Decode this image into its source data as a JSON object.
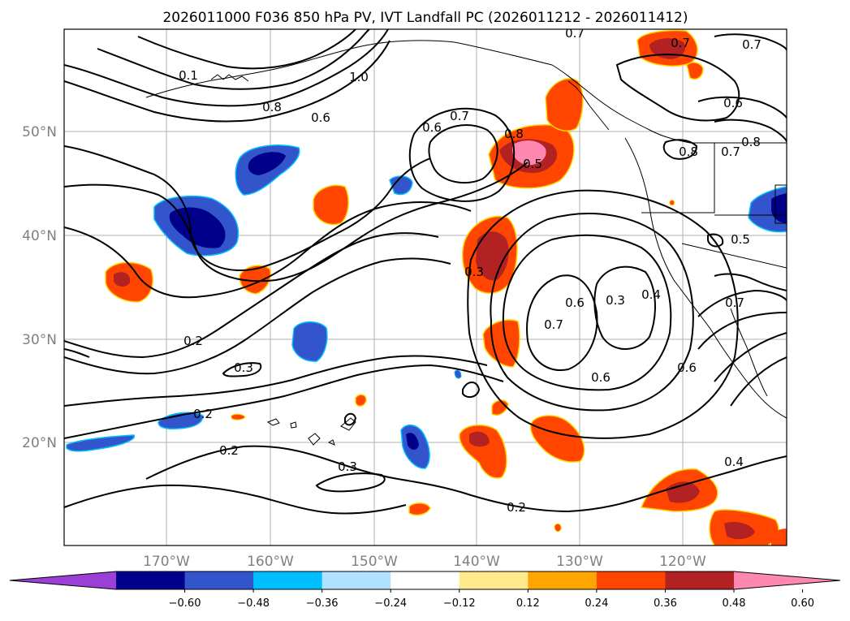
{
  "title": "2026011000 F036 850 hPa PV, IVT Landfall PC (2026011212 - 2026011412)",
  "axes": {
    "lat_labels": [
      "50°N",
      "40°N",
      "30°N",
      "20°N"
    ],
    "lon_labels": [
      "170°W",
      "160°W",
      "150°W",
      "140°W",
      "130°W",
      "120°W"
    ]
  },
  "colorbar": {
    "tick_labels": [
      "−0.60",
      "−0.48",
      "−0.36",
      "−0.24",
      "−0.12",
      "0.12",
      "0.24",
      "0.36",
      "0.48",
      "0.60"
    ],
    "colors": [
      "#9b3fd6",
      "#00008b",
      "#3355cc",
      "#00bfff",
      "#b0e2ff",
      "#ffffff",
      "#ffe98c",
      "#ffa500",
      "#ff4500",
      "#b22222",
      "#ff88b0"
    ]
  },
  "contour_labels": [
    "0.7",
    "0.7",
    "0.7",
    "0.1",
    "1.0",
    "0.8",
    "0.6",
    "0.6",
    "0.7",
    "0.8",
    "0.5",
    "0.6",
    "0.8",
    "0.7",
    "0.8",
    "0.3",
    "0.6",
    "0.7",
    "0.3",
    "0.4",
    "0.5",
    "0.7",
    "0.6",
    "0.6",
    "0.2",
    "0.3",
    "0.2",
    "0.2",
    "0.3",
    "0.2",
    "0.4"
  ],
  "colors": {
    "positive": "#ff4500",
    "positive_core": "#b22222",
    "negative": "#3355cc",
    "negative_core": "#00008b"
  }
}
